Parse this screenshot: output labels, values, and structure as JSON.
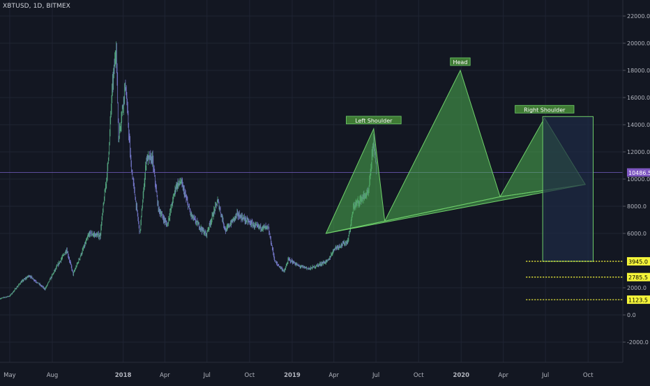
{
  "header": {
    "symbol_line": "XBTUSD, 1D, BITMEX"
  },
  "colors": {
    "background": "#131722",
    "grid": "#1f2433",
    "axis_text": "#b2b5be",
    "candles": "#7c7fd6",
    "candles_up": "#5bb48a",
    "pattern_fill": "#4caf50",
    "pattern_stroke": "#6fcf6a",
    "target_box": "#1e2b45",
    "target_line": "#f5f53a",
    "price_marker": "#7e57c2",
    "current_line": "#6f5ab8"
  },
  "chart_data": {
    "type": "line",
    "title": "XBTUSD, 1D, BITMEX",
    "xlabel": "",
    "ylabel": "",
    "ylim": [
      -3000,
      22000
    ],
    "x_range": [
      "2017-04-10",
      "2020-12-15"
    ],
    "grid": true,
    "y_ticks": [
      {
        "value": 22000,
        "label": "22000.0"
      },
      {
        "value": 20000,
        "label": "20000.0"
      },
      {
        "value": 18000,
        "label": "18000.0"
      },
      {
        "value": 16000,
        "label": "16000.0"
      },
      {
        "value": 14000,
        "label": "14000.0"
      },
      {
        "value": 12000,
        "label": "12000.0"
      },
      {
        "value": 10000,
        "label": "10000.0"
      },
      {
        "value": 8000,
        "label": "8000.0"
      },
      {
        "value": 6000,
        "label": "6000.0"
      },
      {
        "value": 2000,
        "label": "2000.0"
      },
      {
        "value": 0,
        "label": "0.0"
      },
      {
        "value": -2000,
        "label": "-2000.0"
      }
    ],
    "x_ticks": [
      {
        "date": "2017-05-01",
        "label": "May",
        "bold": false
      },
      {
        "date": "2017-08-01",
        "label": "Aug",
        "bold": false
      },
      {
        "date": "2018-01-01",
        "label": "2018",
        "bold": true
      },
      {
        "date": "2018-04-01",
        "label": "Apr",
        "bold": false
      },
      {
        "date": "2018-07-01",
        "label": "Jul",
        "bold": false
      },
      {
        "date": "2018-10-01",
        "label": "Oct",
        "bold": false
      },
      {
        "date": "2019-01-01",
        "label": "2019",
        "bold": true
      },
      {
        "date": "2019-04-01",
        "label": "Apr",
        "bold": false
      },
      {
        "date": "2019-07-01",
        "label": "Jul",
        "bold": false
      },
      {
        "date": "2019-10-01",
        "label": "Oct",
        "bold": false
      },
      {
        "date": "2020-01-01",
        "label": "2020",
        "bold": true
      },
      {
        "date": "2020-04-01",
        "label": "Apr",
        "bold": false
      },
      {
        "date": "2020-07-01",
        "label": "Jul",
        "bold": false
      },
      {
        "date": "2020-10-01",
        "label": "Oct",
        "bold": false
      }
    ],
    "series": [
      {
        "values": [
          [
            "2017-04-10",
            1200
          ],
          [
            "2017-05-01",
            1400
          ],
          [
            "2017-05-25",
            2400
          ],
          [
            "2017-06-12",
            2900
          ],
          [
            "2017-07-16",
            1900
          ],
          [
            "2017-08-05",
            3200
          ],
          [
            "2017-09-01",
            4800
          ],
          [
            "2017-09-15",
            3000
          ],
          [
            "2017-10-20",
            6000
          ],
          [
            "2017-11-12",
            5800
          ],
          [
            "2017-11-29",
            11000
          ],
          [
            "2017-12-08",
            16500
          ],
          [
            "2017-12-17",
            19800
          ],
          [
            "2017-12-22",
            13000
          ],
          [
            "2018-01-06",
            17000
          ],
          [
            "2018-01-18",
            11000
          ],
          [
            "2018-02-06",
            6000
          ],
          [
            "2018-02-20",
            11500
          ],
          [
            "2018-03-05",
            11500
          ],
          [
            "2018-03-18",
            7800
          ],
          [
            "2018-04-06",
            6600
          ],
          [
            "2018-04-25",
            9500
          ],
          [
            "2018-05-06",
            9800
          ],
          [
            "2018-05-28",
            7300
          ],
          [
            "2018-06-29",
            5900
          ],
          [
            "2018-07-24",
            8400
          ],
          [
            "2018-08-10",
            6200
          ],
          [
            "2018-09-04",
            7400
          ],
          [
            "2018-10-15",
            6500
          ],
          [
            "2018-11-10",
            6400
          ],
          [
            "2018-11-25",
            3900
          ],
          [
            "2018-12-15",
            3200
          ],
          [
            "2018-12-24",
            4100
          ],
          [
            "2019-01-15",
            3600
          ],
          [
            "2019-02-08",
            3400
          ],
          [
            "2019-03-20",
            4000
          ],
          [
            "2019-04-02",
            4900
          ],
          [
            "2019-05-01",
            5400
          ],
          [
            "2019-05-14",
            8000
          ],
          [
            "2019-06-01",
            8600
          ],
          [
            "2019-06-15",
            9000
          ],
          [
            "2019-06-26",
            13000
          ],
          [
            "2019-07-02",
            10486.5
          ]
        ]
      }
    ],
    "current_price": {
      "value": 10486.5,
      "label": "10486.5"
    },
    "pattern": {
      "name": "Head and shoulders",
      "left_shoulder": {
        "label": "Left Shoulder",
        "start": [
          "2019-03-15",
          6000
        ],
        "peak": [
          "2019-06-26",
          13700
        ],
        "end": [
          "2019-07-20",
          6900
        ]
      },
      "head": {
        "label": "Head",
        "start": [
          "2019-07-20",
          6900
        ],
        "peak": [
          "2019-12-30",
          18000
        ],
        "end": [
          "2020-03-25",
          8700
        ]
      },
      "right_shoulder": {
        "label": "Right Shoulder",
        "start": [
          "2020-03-25",
          8700
        ],
        "peak": [
          "2020-06-29",
          14500
        ],
        "end": [
          "2020-09-25",
          9600
        ]
      },
      "neckline": [
        [
          "2019-03-15",
          6000
        ],
        [
          "2020-09-25",
          9600
        ]
      ]
    },
    "target_box": {
      "from": "2020-06-25",
      "to": "2020-10-12",
      "top": 14600,
      "bottom": 3945
    },
    "target_levels": [
      {
        "value": 3945.0,
        "label": "3945.0"
      },
      {
        "value": 2785.5,
        "label": "2785.5"
      },
      {
        "value": 1123.5,
        "label": "1123.5"
      }
    ],
    "target_lines_start": "2020-05-20"
  }
}
